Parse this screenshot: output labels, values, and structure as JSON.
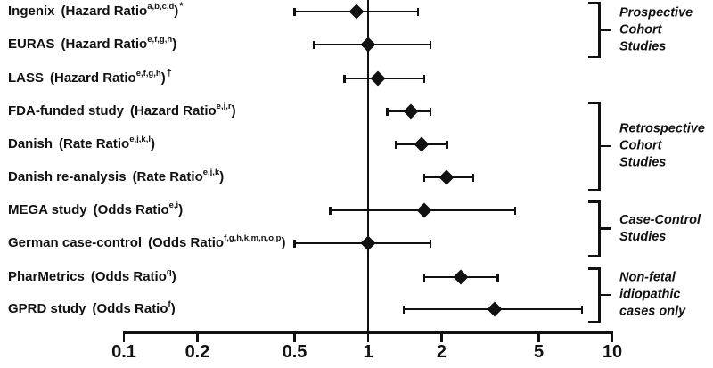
{
  "figure": {
    "background_color": "#ffffff",
    "ink_color": "#111111"
  },
  "chart_data": {
    "type": "scatter",
    "subtype": "forest-plot",
    "title": "",
    "xlabel": "",
    "ylabel": "",
    "x_scale": "log",
    "xlim": [
      0.1,
      10
    ],
    "x_ticks": [
      "0.1",
      "0.2",
      "0.5",
      "1",
      "2",
      "5",
      "10"
    ],
    "x_tick_values": [
      0.1,
      0.2,
      0.5,
      1,
      2,
      5,
      10
    ],
    "reference_line_x": 1,
    "grid": false,
    "marker": "filled-diamond",
    "rows": [
      {
        "study": "Ingenix",
        "measure": "Hazard Ratio",
        "footnotes": "a,b,c,d",
        "suffix": "*",
        "estimate": 0.9,
        "ci_low": 0.5,
        "ci_high": 1.6
      },
      {
        "study": "EURAS",
        "measure": "Hazard Ratio",
        "footnotes": "e,f,g,h",
        "suffix": "",
        "estimate": 1.0,
        "ci_low": 0.6,
        "ci_high": 1.8
      },
      {
        "study": "LASS",
        "measure": "Hazard Ratio",
        "footnotes": "e,f,g,h",
        "suffix": "†",
        "estimate": 1.1,
        "ci_low": 0.8,
        "ci_high": 1.7
      },
      {
        "study": "FDA-funded study",
        "measure": "Hazard Ratio",
        "footnotes": "e,j,r",
        "suffix": "",
        "estimate": 1.5,
        "ci_low": 1.2,
        "ci_high": 1.8
      },
      {
        "study": "Danish",
        "measure": "Rate Ratio",
        "footnotes": "e,j,k,l",
        "suffix": "",
        "estimate": 1.65,
        "ci_low": 1.3,
        "ci_high": 2.1
      },
      {
        "study": "Danish re-analysis",
        "measure": "Rate Ratio",
        "footnotes": "e,j,k",
        "suffix": "",
        "estimate": 2.1,
        "ci_low": 1.7,
        "ci_high": 2.7
      },
      {
        "study": "MEGA study",
        "measure": "Odds Ratio",
        "footnotes": "e,i",
        "suffix": "",
        "estimate": 1.7,
        "ci_low": 0.7,
        "ci_high": 4.0
      },
      {
        "study": "German case-control",
        "measure": "Odds Ratio",
        "footnotes": "f,g,h,k,m,n,o,p",
        "suffix": "",
        "estimate": 1.0,
        "ci_low": 0.5,
        "ci_high": 1.8
      },
      {
        "study": "PharMetrics",
        "measure": "Odds Ratio",
        "footnotes": "q",
        "suffix": "",
        "estimate": 2.4,
        "ci_low": 1.7,
        "ci_high": 3.4
      },
      {
        "study": "GPRD study",
        "measure": "Odds Ratio",
        "footnotes": "f",
        "suffix": "",
        "estimate": 3.3,
        "ci_low": 1.4,
        "ci_high": 7.5
      }
    ],
    "groups": [
      {
        "label_lines": [
          "Prospective",
          "Cohort",
          "Studies"
        ],
        "first_row": 0,
        "last_row": 1
      },
      {
        "label_lines": [
          "Retrospective",
          "Cohort",
          "Studies"
        ],
        "first_row": 3,
        "last_row": 5
      },
      {
        "label_lines": [
          "Case-Control",
          "Studies"
        ],
        "first_row": 6,
        "last_row": 7
      },
      {
        "label_lines": [
          "Non-fetal",
          "idiopathic",
          "cases only"
        ],
        "first_row": 8,
        "last_row": 9
      }
    ]
  }
}
